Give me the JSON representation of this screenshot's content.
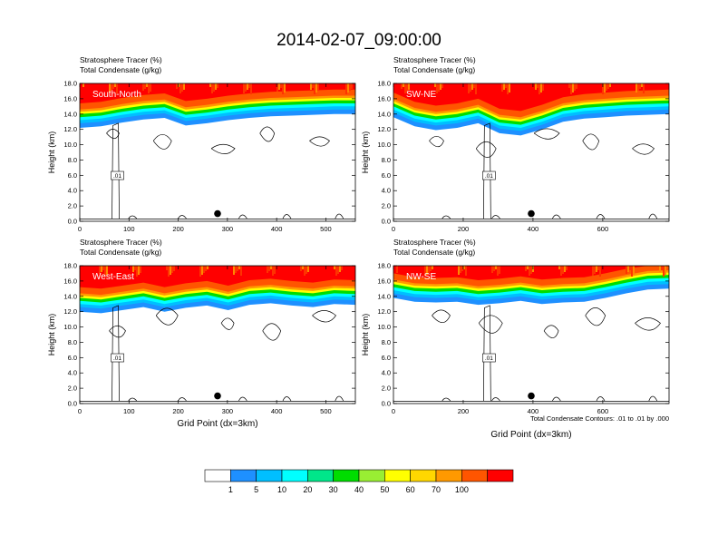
{
  "title": "2014-02-07_09:00:00",
  "panel_subtitle_1": "Stratosphere Tracer   (%)",
  "panel_subtitle_2": "Total Condensate   (g/kg)",
  "ylabel": "Height (km)",
  "xlabel": "Grid Point (dx=3km)",
  "contour_info": "Total Condensate Contours: .01 to .01 by .000",
  "contour_label": ".01",
  "chart_data": [
    {
      "type": "heatmap",
      "name": "South-North",
      "xlim": [
        0,
        560
      ],
      "xticks": [
        0,
        100,
        200,
        300,
        400,
        500
      ],
      "ylim": [
        0,
        18
      ],
      "yticks": [
        "0.0",
        "2.0",
        "4.0",
        "6.0",
        "8.0",
        "10.0",
        "12.0",
        "14.0",
        "16.0",
        "18.0"
      ],
      "marker": {
        "x": 280,
        "y": 1.0
      },
      "tracer_base_km": [
        12.2,
        12.4,
        12.9,
        13.3,
        13.5,
        12.5,
        12.8,
        13.2,
        13.5,
        13.7,
        13.8,
        13.9,
        14.0,
        14.0
      ]
    },
    {
      "type": "heatmap",
      "name": "SW-NE",
      "xlim": [
        0,
        790
      ],
      "xticks": [
        0,
        200,
        400,
        600
      ],
      "ylim": [
        0,
        18
      ],
      "yticks": [
        "0.0",
        "2.0",
        "4.0",
        "6.0",
        "8.0",
        "10.0",
        "12.0",
        "14.0",
        "16.0",
        "18.0"
      ],
      "marker": {
        "x": 395,
        "y": 1.0
      },
      "tracer_base_km": [
        13.6,
        12.4,
        11.9,
        12.2,
        12.8,
        11.5,
        11.2,
        12.0,
        13.0,
        13.4,
        13.6,
        13.8,
        13.9,
        14.0
      ]
    },
    {
      "type": "heatmap",
      "name": "West-East",
      "xlim": [
        0,
        560
      ],
      "xticks": [
        0,
        100,
        200,
        300,
        400,
        500
      ],
      "ylim": [
        0,
        18
      ],
      "yticks": [
        "0.0",
        "2.0",
        "4.0",
        "6.0",
        "8.0",
        "10.0",
        "12.0",
        "14.0",
        "16.0",
        "18.0"
      ],
      "marker": {
        "x": 280,
        "y": 1.0
      },
      "tracer_base_km": [
        12.0,
        11.8,
        12.2,
        12.6,
        12.0,
        12.5,
        12.8,
        12.2,
        12.9,
        13.1,
        12.8,
        12.6,
        13.0,
        12.9
      ]
    },
    {
      "type": "heatmap",
      "name": "NW-SE",
      "xlim": [
        0,
        790
      ],
      "xticks": [
        0,
        200,
        400,
        600
      ],
      "ylim": [
        0,
        18
      ],
      "yticks": [
        "0.0",
        "2.0",
        "4.0",
        "6.0",
        "8.0",
        "10.0",
        "12.0",
        "14.0",
        "16.0",
        "18.0"
      ],
      "marker": {
        "x": 395,
        "y": 1.0
      },
      "tracer_base_km": [
        13.8,
        13.3,
        13.2,
        13.3,
        12.9,
        13.1,
        13.4,
        13.0,
        13.2,
        13.3,
        13.8,
        14.4,
        14.9,
        15.0
      ]
    }
  ],
  "colorbar": {
    "labels": [
      "1",
      "5",
      "10",
      "20",
      "30",
      "40",
      "50",
      "60",
      "70",
      "100"
    ],
    "colors": [
      "#ffffff",
      "#1e90ff",
      "#00bfff",
      "#00ffff",
      "#00e68a",
      "#00dd00",
      "#99ee33",
      "#ffff00",
      "#ffd700",
      "#ff9900",
      "#ff5500",
      "#ff0000"
    ]
  }
}
